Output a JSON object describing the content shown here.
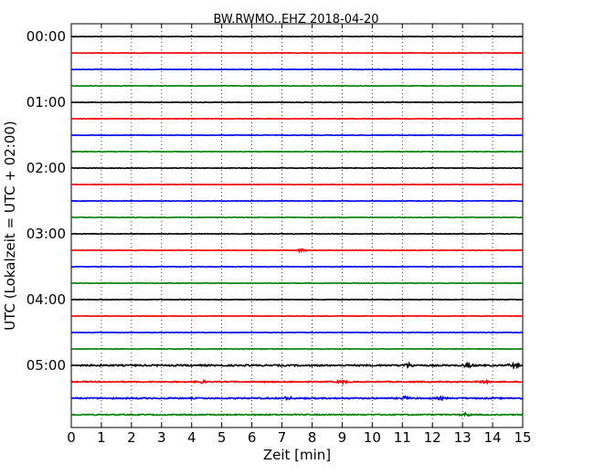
{
  "chart_data": {
    "type": "line",
    "title": "BW.RWMO..EHZ 2018-04-20",
    "xlabel": "Zeit  [min]",
    "ylabel": "UTC (Lokalzeit = UTC + 02:00)",
    "xlim": [
      0,
      15
    ],
    "x_ticks": [
      "0",
      "1",
      "2",
      "3",
      "4",
      "5",
      "6",
      "7",
      "8",
      "9",
      "10",
      "11",
      "12",
      "13",
      "14",
      "15"
    ],
    "y_tick_labels": [
      "00:00",
      "01:00",
      "02:00",
      "03:00",
      "04:00",
      "05:00"
    ],
    "grid": "vertical dotted lines at each minute",
    "series_colors": [
      "#000000",
      "#ff0000",
      "#0000ff",
      "#008000"
    ],
    "traces": [
      {
        "offset": "00:00",
        "color": "#000000",
        "amplitude": 0.3,
        "events": []
      },
      {
        "offset": "00:15",
        "color": "#ff0000",
        "amplitude": 0.3,
        "events": []
      },
      {
        "offset": "00:30",
        "color": "#0000ff",
        "amplitude": 0.3,
        "events": []
      },
      {
        "offset": "00:45",
        "color": "#008000",
        "amplitude": 0.3,
        "events": []
      },
      {
        "offset": "01:00",
        "color": "#000000",
        "amplitude": 0.3,
        "events": []
      },
      {
        "offset": "01:15",
        "color": "#ff0000",
        "amplitude": 0.3,
        "events": []
      },
      {
        "offset": "01:30",
        "color": "#0000ff",
        "amplitude": 0.3,
        "events": []
      },
      {
        "offset": "01:45",
        "color": "#008000",
        "amplitude": 0.3,
        "events": []
      },
      {
        "offset": "02:00",
        "color": "#000000",
        "amplitude": 0.3,
        "events": []
      },
      {
        "offset": "02:15",
        "color": "#ff0000",
        "amplitude": 0.3,
        "events": []
      },
      {
        "offset": "02:30",
        "color": "#0000ff",
        "amplitude": 0.3,
        "events": []
      },
      {
        "offset": "02:45",
        "color": "#008000",
        "amplitude": 0.3,
        "events": []
      },
      {
        "offset": "03:00",
        "color": "#000000",
        "amplitude": 0.3,
        "events": []
      },
      {
        "offset": "03:15",
        "color": "#ff0000",
        "amplitude": 0.3,
        "events": [
          {
            "t": 7.65,
            "amp": 1.6
          }
        ]
      },
      {
        "offset": "03:30",
        "color": "#0000ff",
        "amplitude": 0.3,
        "events": []
      },
      {
        "offset": "03:45",
        "color": "#008000",
        "amplitude": 0.3,
        "events": []
      },
      {
        "offset": "04:00",
        "color": "#000000",
        "amplitude": 0.3,
        "events": []
      },
      {
        "offset": "04:15",
        "color": "#ff0000",
        "amplitude": 0.3,
        "events": []
      },
      {
        "offset": "04:30",
        "color": "#0000ff",
        "amplitude": 0.35,
        "events": []
      },
      {
        "offset": "04:45",
        "color": "#008000",
        "amplitude": 0.3,
        "events": []
      },
      {
        "offset": "05:00",
        "color": "#000000",
        "amplitude": 0.8,
        "events": [
          {
            "t": 11.2,
            "amp": 2.0
          },
          {
            "t": 13.2,
            "amp": 1.6
          },
          {
            "t": 14.7,
            "amp": 1.8
          }
        ]
      },
      {
        "offset": "05:15",
        "color": "#ff0000",
        "amplitude": 0.6,
        "events": [
          {
            "t": 4.3,
            "amp": 1.4
          },
          {
            "t": 9.0,
            "amp": 1.4
          },
          {
            "t": 13.7,
            "amp": 1.4
          }
        ]
      },
      {
        "offset": "05:30",
        "color": "#0000ff",
        "amplitude": 0.7,
        "events": [
          {
            "t": 7.2,
            "amp": 1.3
          },
          {
            "t": 11.1,
            "amp": 1.4
          },
          {
            "t": 12.3,
            "amp": 1.3
          }
        ]
      },
      {
        "offset": "05:45",
        "color": "#008000",
        "amplitude": 0.6,
        "events": [
          {
            "t": 13.1,
            "amp": 1.4
          }
        ]
      }
    ]
  }
}
